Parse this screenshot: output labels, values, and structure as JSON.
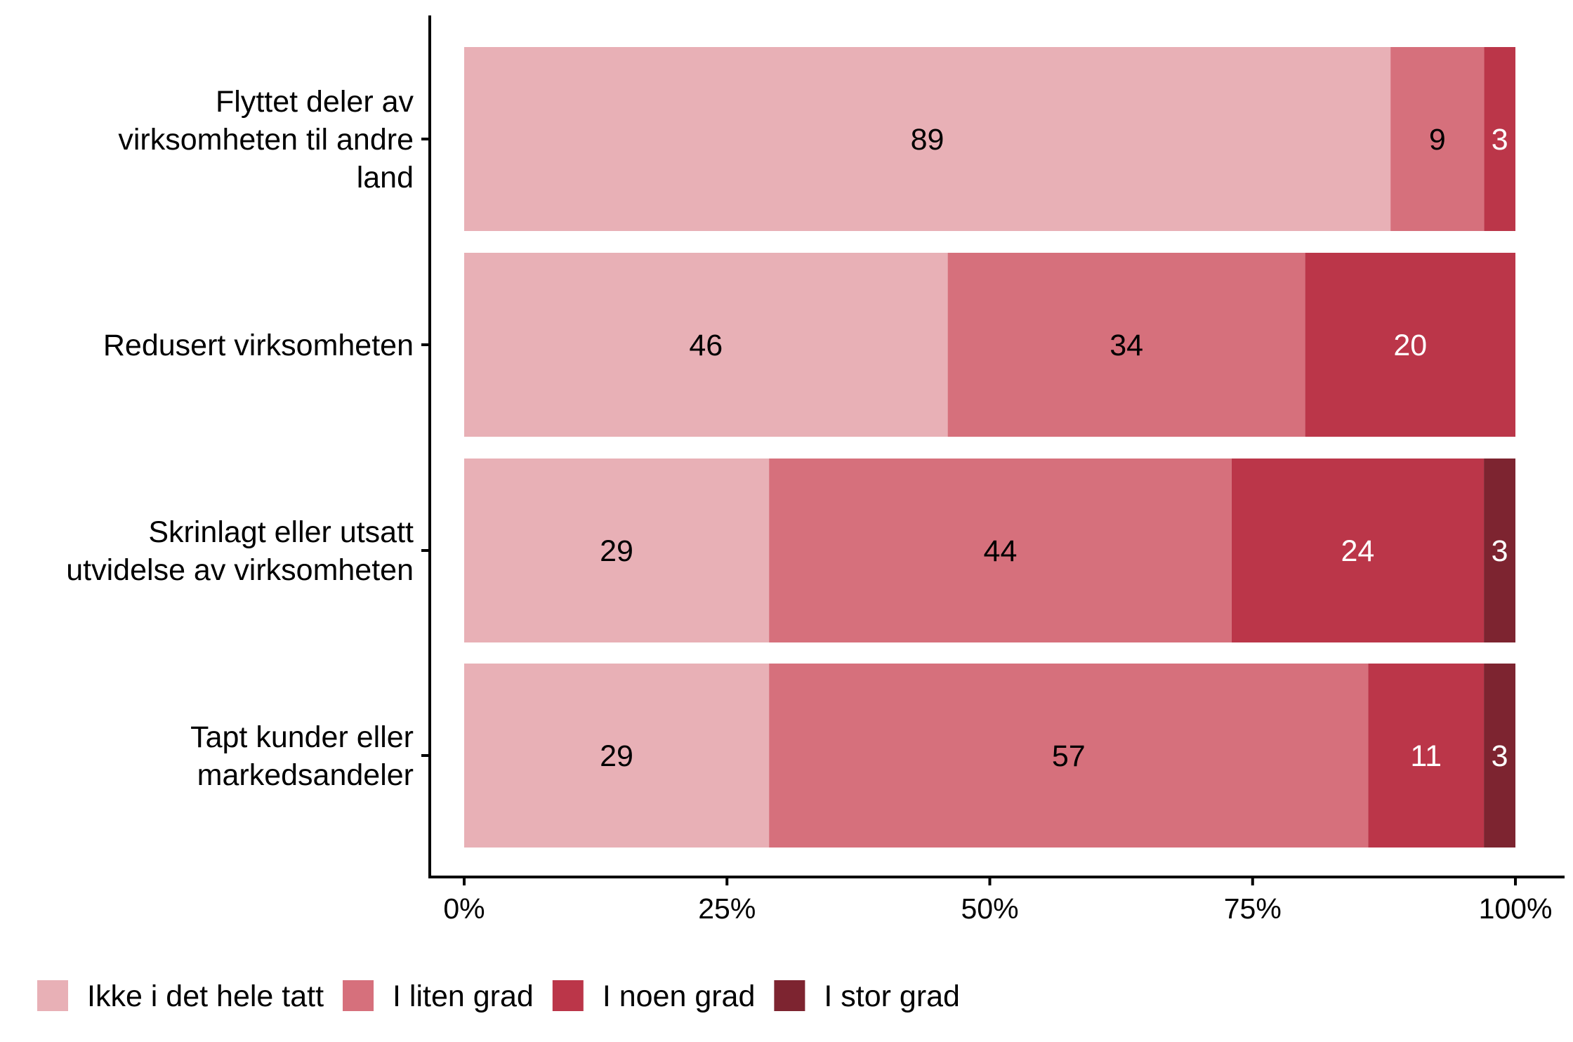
{
  "chart_data": {
    "type": "bar",
    "orientation": "horizontal",
    "stacked": "percent",
    "categories": [
      [
        "Flyttet deler av",
        "virksomheten til andre",
        "land"
      ],
      [
        "Redusert virksomheten"
      ],
      [
        "Skrinlagt eller utsatt",
        "utvidelse av virksomheten"
      ],
      [
        "Tapt kunder eller",
        "markedsandeler"
      ]
    ],
    "series": [
      {
        "name": "Ikke i det hele tatt",
        "color": "#E8B0B6",
        "label_color": "#000000",
        "values": [
          89,
          46,
          29,
          29
        ]
      },
      {
        "name": "I liten grad",
        "color": "#D6707C",
        "label_color": "#000000",
        "values": [
          9,
          34,
          44,
          57
        ]
      },
      {
        "name": "I noen grad",
        "color": "#BB3649",
        "label_color": "#FFFFFF",
        "values": [
          3,
          20,
          24,
          11
        ]
      },
      {
        "name": "I stor grad",
        "color": "#7D2430",
        "label_color": "#FFFFFF",
        "values": [
          0,
          0,
          3,
          3
        ]
      }
    ],
    "xticks": [
      "0%",
      "25%",
      "50%",
      "75%",
      "100%"
    ],
    "xlim": [
      0,
      100
    ],
    "title": "",
    "xlabel": "",
    "ylabel": "",
    "legend_position": "bottom-left",
    "grid": false
  }
}
